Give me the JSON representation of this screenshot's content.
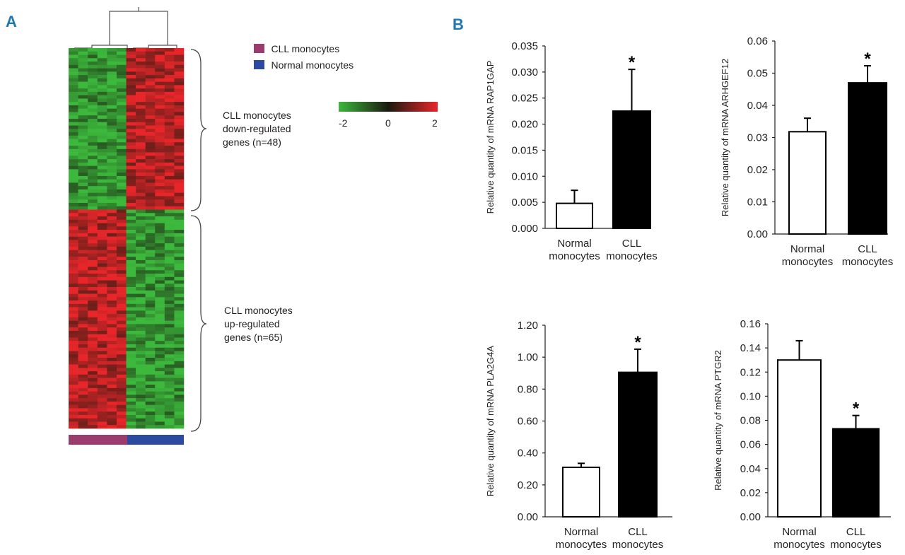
{
  "panels": {
    "a_label": "A",
    "b_label": "B"
  },
  "heatmap": {
    "legend": [
      {
        "label": "CLL monocytes",
        "color": "#9b3b6e"
      },
      {
        "label": "Normal monocytes",
        "color": "#2c4ba0"
      }
    ],
    "scale": {
      "min_label": "-2",
      "mid_label": "0",
      "max_label": "2",
      "low_color": "#3cb83c",
      "mid_color": "#1a1a0f",
      "high_color": "#e8262a"
    },
    "clusters": [
      {
        "lines": [
          "CLL monocytes",
          "down-regulated",
          "genes (n=48)"
        ]
      },
      {
        "lines": [
          "CLL monocytes",
          "up-regulated",
          "genes (n=65)"
        ]
      }
    ]
  },
  "chart_data": [
    {
      "type": "bar",
      "id": "rap1gap",
      "categories": [
        "Normal monocytes",
        "CLL monocytes"
      ],
      "category_lines": [
        [
          "Normal",
          "monocytes"
        ],
        [
          "CLL",
          "monocytes"
        ]
      ],
      "values": [
        0.0048,
        0.0225
      ],
      "errors": [
        0.0025,
        0.008
      ],
      "fills": [
        "#ffffff",
        "#000000"
      ],
      "significance": [
        "",
        "*"
      ],
      "ylabel": "Relative quantity of  mRNA RAP1GAP",
      "ylim": [
        0,
        0.035
      ],
      "yticks": [
        "0.000",
        "0.005",
        "0.010",
        "0.015",
        "0.020",
        "0.025",
        "0.030",
        "0.035"
      ]
    },
    {
      "type": "bar",
      "id": "arhgef12",
      "categories": [
        "Normal monocytes",
        "CLL monocytes"
      ],
      "category_lines": [
        [
          "Normal",
          "monocytes"
        ],
        [
          "CLL",
          "monocytes"
        ]
      ],
      "values": [
        0.0318,
        0.047
      ],
      "errors": [
        0.0042,
        0.0053
      ],
      "fills": [
        "#ffffff",
        "#000000"
      ],
      "significance": [
        "",
        "*"
      ],
      "ylabel": "Relative quantity of mRNA ARHGEF12",
      "ylim": [
        0,
        0.06
      ],
      "yticks": [
        "0.00",
        "0.01",
        "0.02",
        "0.03",
        "0.04",
        "0.05",
        "0.06"
      ]
    },
    {
      "type": "bar",
      "id": "pla2g4a",
      "categories": [
        "Normal monocytes",
        "CLL monocytes"
      ],
      "category_lines": [
        [
          "Normal",
          "monocytes"
        ],
        [
          "CLL",
          "monocytes"
        ]
      ],
      "values": [
        0.31,
        0.905
      ],
      "errors": [
        0.025,
        0.145
      ],
      "fills": [
        "#ffffff",
        "#000000"
      ],
      "significance": [
        "",
        "*"
      ],
      "ylabel": "Relative quantity of mRNA PLA2G4A",
      "ylim": [
        0,
        1.2
      ],
      "yticks": [
        "0.00",
        "0.20",
        "0.40",
        "0.60",
        "0.80",
        "1.00",
        "1.20"
      ]
    },
    {
      "type": "bar",
      "id": "ptgr2",
      "categories": [
        "Normal monocytes",
        "CLL monocytes"
      ],
      "category_lines": [
        [
          "Normal",
          "monocytes"
        ],
        [
          "CLL",
          "monocytes"
        ]
      ],
      "values": [
        0.13,
        0.073
      ],
      "errors": [
        0.016,
        0.011
      ],
      "fills": [
        "#ffffff",
        "#000000"
      ],
      "significance": [
        "",
        "*"
      ],
      "ylabel": "Relative quantity of mRNA PTGR2",
      "ylim": [
        0,
        0.16
      ],
      "yticks": [
        "0.00",
        "0.02",
        "0.04",
        "0.06",
        "0.08",
        "0.10",
        "0.12",
        "0.14",
        "0.16"
      ]
    }
  ]
}
